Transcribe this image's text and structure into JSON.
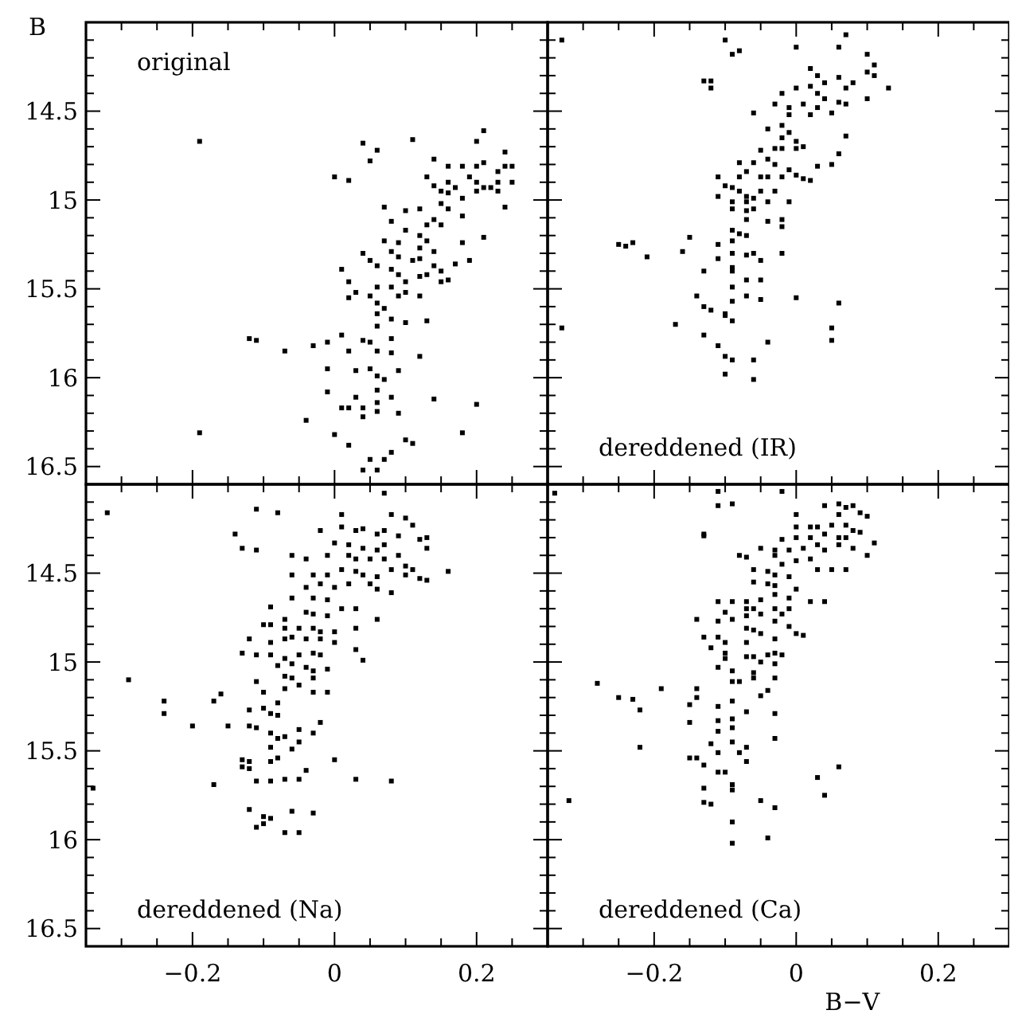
{
  "chart_data": [
    {
      "type": "scatter",
      "ylabel": "B",
      "annotations": [
        "original"
      ],
      "marker": "square",
      "tick_labels": "y",
      "xlim": [
        -0.35,
        0.3
      ],
      "ylim": [
        16.6,
        14.0
      ],
      "xticks": [
        {
          "value": -0.3,
          "label": null
        },
        {
          "value": -0.25,
          "label": null
        },
        {
          "value": -0.2,
          "label": null
        },
        {
          "value": -0.15,
          "label": null
        },
        {
          "value": -0.1,
          "label": null
        },
        {
          "value": -0.05,
          "label": null
        },
        {
          "value": 0,
          "label": null
        },
        {
          "value": 0.05,
          "label": null
        },
        {
          "value": 0.1,
          "label": null
        },
        {
          "value": 0.15,
          "label": null
        },
        {
          "value": 0.2,
          "label": null
        },
        {
          "value": 0.25,
          "label": null
        }
      ],
      "yticks": [
        {
          "value": 14.1,
          "label": null
        },
        {
          "value": 14.2,
          "label": null
        },
        {
          "value": 14.3,
          "label": null
        },
        {
          "value": 14.4,
          "label": null
        },
        14.5,
        {
          "value": 14.6,
          "label": null
        },
        {
          "value": 14.7,
          "label": null
        },
        {
          "value": 14.8,
          "label": null
        },
        {
          "value": 14.9,
          "label": null
        },
        15,
        {
          "value": 15.1,
          "label": null
        },
        {
          "value": 15.2,
          "label": null
        },
        {
          "value": 15.3,
          "label": null
        },
        {
          "value": 15.4,
          "label": null
        },
        15.5,
        {
          "value": 15.6,
          "label": null
        },
        {
          "value": 15.7,
          "label": null
        },
        {
          "value": 15.8,
          "label": null
        },
        {
          "value": 15.9,
          "label": null
        },
        16,
        {
          "value": 16.1,
          "label": null
        },
        {
          "value": 16.2,
          "label": null
        },
        {
          "value": 16.3,
          "label": null
        },
        {
          "value": 16.4,
          "label": null
        },
        16.5
      ],
      "series": [
        {
          "color": "#000000",
          "x": [
            -0.19,
            -0.19,
            0.04,
            0.06,
            0.05,
            0.0,
            0.02,
            0.11,
            0.2,
            0.21,
            0.24,
            0.25,
            0.07,
            0.1,
            0.12,
            0.14,
            0.16,
            0.18,
            0.2,
            0.21,
            0.23,
            0.24,
            0.25,
            0.23,
            0.22,
            0.2,
            0.19,
            0.17,
            0.16,
            0.15,
            0.14,
            0.13,
            0.16,
            0.18,
            0.2,
            0.21,
            0.23,
            0.24,
            0.15,
            0.14,
            0.13,
            0.12,
            0.1,
            0.08,
            0.09,
            0.12,
            0.13,
            0.15,
            0.16,
            0.14,
            0.18,
            0.18,
            0.21,
            0.07,
            0.08,
            0.09,
            0.11,
            0.12,
            0.14,
            0.15,
            0.17,
            0.19,
            0.04,
            0.05,
            0.06,
            0.08,
            0.09,
            0.1,
            0.12,
            0.13,
            0.15,
            0.16,
            0.01,
            0.02,
            0.03,
            0.05,
            0.06,
            0.08,
            0.09,
            0.1,
            0.12,
            0.02,
            0.06,
            0.07,
            0.08,
            0.1,
            0.13,
            0.06,
            0.06,
            0.01,
            0.04,
            0.05,
            0.08,
            0.02,
            0.06,
            0.08,
            0.12,
            -0.03,
            -0.01,
            -0.12,
            -0.11,
            -0.07,
            -0.01,
            0.03,
            0.05,
            0.06,
            0.07,
            0.09,
            0.03,
            0.06,
            0.06,
            0.08,
            -0.01,
            0.01,
            0.02,
            0.04,
            0.04,
            0.06,
            0.14,
            0.2,
            -0.04,
            0.0,
            0.02,
            0.05,
            0.06,
            0.07,
            0.1,
            0.11,
            0.04,
            0.18,
            0.09,
            0.08
          ],
          "values": [
            14.67,
            16.31,
            14.68,
            14.72,
            14.78,
            14.87,
            14.89,
            14.66,
            14.67,
            14.61,
            14.73,
            14.81,
            15.04,
            15.06,
            15.05,
            14.77,
            14.81,
            14.81,
            14.81,
            14.79,
            14.84,
            14.81,
            14.9,
            14.9,
            14.93,
            14.9,
            14.87,
            14.93,
            14.96,
            14.95,
            14.92,
            14.87,
            14.9,
            14.99,
            14.95,
            14.93,
            14.95,
            15.04,
            15.02,
            15.11,
            15.14,
            15.2,
            15.17,
            15.12,
            15.24,
            15.27,
            15.23,
            15.14,
            15.05,
            15.29,
            15.24,
            15.09,
            15.21,
            15.23,
            15.29,
            15.32,
            15.34,
            15.33,
            15.37,
            15.4,
            15.36,
            15.34,
            15.3,
            15.34,
            15.37,
            15.39,
            15.42,
            15.46,
            15.43,
            15.42,
            15.46,
            15.45,
            15.39,
            15.46,
            15.52,
            15.54,
            15.49,
            15.49,
            15.54,
            15.52,
            15.54,
            15.55,
            15.58,
            15.61,
            15.67,
            15.69,
            15.68,
            15.64,
            15.71,
            15.76,
            15.79,
            15.8,
            15.78,
            15.85,
            15.85,
            15.86,
            15.88,
            15.82,
            15.8,
            15.78,
            15.79,
            15.85,
            15.95,
            15.96,
            15.95,
            15.99,
            16.01,
            15.96,
            16.11,
            16.07,
            16.14,
            16.11,
            16.08,
            16.17,
            16.17,
            16.17,
            16.22,
            16.19,
            16.12,
            16.15,
            16.24,
            16.32,
            16.38,
            16.46,
            16.52,
            16.46,
            16.35,
            16.37,
            16.52,
            16.31,
            16.2,
            16.42
          ]
        }
      ]
    },
    {
      "type": "scatter",
      "annotations": [
        "dereddened (IR)"
      ],
      "marker": "square",
      "tick_labels": false,
      "xlim": [
        -0.35,
        0.3
      ],
      "ylim": [
        16.6,
        14.0
      ],
      "xticks": [
        {
          "value": -0.3,
          "label": null
        },
        {
          "value": -0.25,
          "label": null
        },
        {
          "value": -0.2,
          "label": null
        },
        {
          "value": -0.15,
          "label": null
        },
        {
          "value": -0.1,
          "label": null
        },
        {
          "value": -0.05,
          "label": null
        },
        {
          "value": 0,
          "label": null
        },
        {
          "value": 0.05,
          "label": null
        },
        {
          "value": 0.1,
          "label": null
        },
        {
          "value": 0.15,
          "label": null
        },
        {
          "value": 0.2,
          "label": null
        },
        {
          "value": 0.25,
          "label": null
        }
      ],
      "yticks": [
        {
          "value": 14.1,
          "label": null
        },
        {
          "value": 14.2,
          "label": null
        },
        {
          "value": 14.3,
          "label": null
        },
        {
          "value": 14.4,
          "label": null
        },
        {
          "value": 14.5,
          "label": null
        },
        {
          "value": 14.6,
          "label": null
        },
        {
          "value": 14.7,
          "label": null
        },
        {
          "value": 14.8,
          "label": null
        },
        {
          "value": 14.9,
          "label": null
        },
        {
          "value": 15,
          "label": null
        },
        {
          "value": 15.1,
          "label": null
        },
        {
          "value": 15.2,
          "label": null
        },
        {
          "value": 15.3,
          "label": null
        },
        {
          "value": 15.4,
          "label": null
        },
        {
          "value": 15.5,
          "label": null
        },
        {
          "value": 15.6,
          "label": null
        },
        {
          "value": 15.7,
          "label": null
        },
        {
          "value": 15.8,
          "label": null
        },
        {
          "value": 15.9,
          "label": null
        },
        {
          "value": 16,
          "label": null
        },
        {
          "value": 16.1,
          "label": null
        },
        {
          "value": 16.2,
          "label": null
        },
        {
          "value": 16.3,
          "label": null
        },
        {
          "value": 16.4,
          "label": null
        },
        {
          "value": 16.5,
          "label": null
        }
      ],
      "series": [
        {
          "color": "#000000",
          "x": [
            -0.33,
            -0.33,
            -0.1,
            -0.09,
            -0.08,
            0.0,
            0.07,
            0.06,
            -0.13,
            -0.12,
            -0.12,
            0.1,
            0.11,
            0.11,
            0.1,
            0.13,
            0.08,
            0.07,
            0.06,
            0.04,
            0.03,
            0.02,
            0.02,
            0.0,
            0.03,
            0.04,
            0.06,
            0.07,
            0.1,
            0.05,
            0.03,
            0.01,
            -0.01,
            -0.02,
            -0.01,
            0.02,
            -0.03,
            -0.06,
            -0.04,
            -0.02,
            -0.01,
            0.0,
            0.07,
            -0.02,
            -0.03,
            -0.05,
            -0.02,
            0.0,
            0.01,
            0.06,
            0.05,
            -0.08,
            -0.06,
            -0.04,
            -0.03,
            -0.01,
            0.0,
            0.01,
            0.02,
            0.03,
            -0.02,
            -0.04,
            -0.05,
            -0.07,
            -0.08,
            -0.11,
            -0.1,
            -0.09,
            -0.08,
            -0.07,
            -0.05,
            -0.03,
            -0.01,
            -0.11,
            -0.09,
            -0.07,
            -0.06,
            -0.04,
            -0.09,
            -0.07,
            -0.07,
            -0.04,
            -0.02,
            -0.02,
            -0.06,
            -0.09,
            -0.08,
            -0.07,
            -0.15,
            -0.16,
            -0.25,
            -0.24,
            -0.23,
            -0.21,
            -0.11,
            -0.09,
            -0.09,
            -0.07,
            -0.06,
            -0.05,
            -0.02,
            -0.11,
            -0.09,
            -0.09,
            -0.09,
            -0.07,
            -0.05,
            -0.13,
            -0.14,
            -0.12,
            -0.13,
            -0.1,
            -0.09,
            -0.1,
            -0.09,
            -0.07,
            -0.05,
            0.0,
            0.06,
            -0.17,
            -0.13,
            -0.11,
            -0.1,
            -0.09,
            -0.06,
            -0.1,
            -0.06,
            -0.04,
            0.05,
            0.05
          ],
          "values": [
            14.1,
            15.72,
            14.1,
            14.18,
            14.16,
            14.14,
            14.07,
            14.14,
            14.33,
            14.33,
            14.37,
            14.18,
            14.24,
            14.3,
            14.28,
            14.37,
            14.34,
            14.37,
            14.31,
            14.34,
            14.3,
            14.26,
            14.36,
            14.37,
            14.4,
            14.43,
            14.45,
            14.46,
            14.43,
            14.51,
            14.48,
            14.46,
            14.48,
            14.4,
            14.52,
            14.52,
            14.46,
            14.51,
            14.6,
            14.58,
            14.62,
            14.67,
            14.64,
            14.65,
            14.71,
            14.72,
            14.71,
            14.71,
            14.7,
            14.74,
            14.8,
            14.79,
            14.79,
            14.77,
            14.8,
            14.83,
            14.86,
            14.88,
            14.89,
            14.81,
            14.87,
            14.87,
            14.87,
            14.84,
            14.87,
            14.87,
            14.92,
            14.93,
            14.95,
            14.98,
            14.95,
            14.95,
            15.01,
            14.98,
            15.01,
            15.01,
            14.99,
            15.01,
            15.05,
            15.06,
            15.11,
            15.12,
            15.11,
            15.15,
            15.05,
            15.17,
            15.19,
            15.2,
            15.21,
            15.29,
            15.25,
            15.26,
            15.24,
            15.32,
            15.25,
            15.23,
            15.3,
            15.31,
            15.3,
            15.34,
            15.3,
            15.33,
            15.38,
            15.4,
            15.49,
            15.45,
            15.45,
            15.4,
            15.54,
            15.62,
            15.6,
            15.64,
            15.68,
            15.65,
            15.57,
            15.54,
            15.56,
            15.55,
            15.58,
            15.7,
            15.76,
            15.82,
            15.88,
            15.9,
            15.9,
            15.98,
            16.01,
            15.8,
            15.72,
            15.79
          ]
        }
      ]
    },
    {
      "type": "scatter",
      "annotations": [
        "dereddened (Na)"
      ],
      "marker": "square",
      "xlim": [
        -0.35,
        0.3
      ],
      "ylim": [
        16.6,
        14.0
      ],
      "xticks": [
        {
          "value": -0.3,
          "label": null
        },
        {
          "value": -0.25,
          "label": null
        },
        {
          "value": -0.2,
          "label": "−0.2"
        },
        {
          "value": -0.15,
          "label": null
        },
        {
          "value": -0.1,
          "label": null
        },
        {
          "value": -0.05,
          "label": null
        },
        {
          "value": 0,
          "label": "0"
        },
        {
          "value": 0.05,
          "label": null
        },
        {
          "value": 0.1,
          "label": null
        },
        {
          "value": 0.15,
          "label": null
        },
        0.2,
        {
          "value": 0.25,
          "label": null
        }
      ],
      "yticks": [
        {
          "value": 14.1,
          "label": null
        },
        {
          "value": 14.2,
          "label": null
        },
        {
          "value": 14.3,
          "label": null
        },
        {
          "value": 14.4,
          "label": null
        },
        14.5,
        {
          "value": 14.6,
          "label": null
        },
        {
          "value": 14.7,
          "label": null
        },
        {
          "value": 14.8,
          "label": null
        },
        {
          "value": 14.9,
          "label": null
        },
        15,
        {
          "value": 15.1,
          "label": null
        },
        {
          "value": 15.2,
          "label": null
        },
        {
          "value": 15.3,
          "label": null
        },
        {
          "value": 15.4,
          "label": null
        },
        15.5,
        {
          "value": 15.6,
          "label": null
        },
        {
          "value": 15.7,
          "label": null
        },
        {
          "value": 15.8,
          "label": null
        },
        {
          "value": 15.9,
          "label": null
        },
        16,
        {
          "value": 16.1,
          "label": null
        },
        {
          "value": 16.2,
          "label": null
        },
        {
          "value": 16.3,
          "label": null
        },
        {
          "value": 16.4,
          "label": null
        },
        16.5
      ],
      "series": [
        {
          "color": "#000000",
          "x": [
            -0.32,
            -0.11,
            -0.08,
            0.07,
            -0.14,
            -0.13,
            -0.11,
            -0.06,
            -0.04,
            -0.29,
            -0.24,
            -0.24,
            -0.2,
            -0.17,
            -0.16,
            -0.15,
            -0.17,
            -0.34,
            0.01,
            -0.02,
            0.01,
            0.03,
            0.04,
            0.06,
            0.07,
            0.08,
            0.1,
            0.11,
            0.09,
            0.12,
            0.13,
            0.13,
            0.0,
            0.02,
            0.04,
            0.06,
            0.07,
            -0.01,
            0.02,
            0.03,
            0.05,
            0.07,
            0.09,
            0.08,
            0.1,
            0.11,
            0.16,
            0.13,
            0.12,
            0.1,
            0.06,
            0.04,
            0.03,
            0.01,
            -0.01,
            -0.03,
            -0.06,
            -0.04,
            -0.02,
            0.0,
            0.02,
            0.05,
            0.08,
            0.06,
            -0.06,
            -0.03,
            -0.01,
            0.01,
            0.03,
            -0.09,
            -0.04,
            -0.03,
            -0.01,
            -0.07,
            0.06,
            -0.1,
            -0.09,
            -0.07,
            -0.05,
            -0.03,
            -0.02,
            0.0,
            0.03,
            -0.12,
            -0.09,
            -0.07,
            -0.06,
            -0.04,
            -0.02,
            0.0,
            0.03,
            -0.13,
            -0.11,
            -0.09,
            -0.07,
            -0.05,
            -0.03,
            -0.02,
            0.04,
            -0.08,
            -0.06,
            -0.04,
            -0.03,
            -0.01,
            -0.07,
            -0.06,
            -0.03,
            -0.07,
            -0.05,
            -0.03,
            -0.01,
            -0.11,
            -0.1,
            -0.08,
            -0.12,
            -0.1,
            -0.09,
            -0.08,
            -0.12,
            -0.11,
            -0.09,
            -0.08,
            -0.07,
            -0.05,
            -0.03,
            -0.02,
            -0.09,
            -0.06,
            -0.05,
            -0.08,
            -0.13,
            -0.12,
            -0.13,
            -0.12,
            -0.09,
            0.0,
            -0.04,
            -0.09,
            -0.07,
            -0.05,
            -0.11,
            0.03,
            0.08,
            -0.12,
            -0.1,
            -0.09,
            -0.06,
            -0.03,
            -0.11,
            -0.07,
            -0.05,
            -0.1
          ],
          "values": [
            14.16,
            14.14,
            14.16,
            14.05,
            14.28,
            14.36,
            14.37,
            14.4,
            14.42,
            15.1,
            15.22,
            15.29,
            15.36,
            15.22,
            15.18,
            15.36,
            15.69,
            15.71,
            14.17,
            14.26,
            14.24,
            14.26,
            14.25,
            14.28,
            14.26,
            14.17,
            14.19,
            14.23,
            14.29,
            14.31,
            14.3,
            14.36,
            14.33,
            14.34,
            14.36,
            14.37,
            14.34,
            14.4,
            14.4,
            14.42,
            14.42,
            14.42,
            14.4,
            14.48,
            14.46,
            14.48,
            14.49,
            14.54,
            14.53,
            14.51,
            14.52,
            14.51,
            14.49,
            14.48,
            14.51,
            14.51,
            14.51,
            14.58,
            14.56,
            14.58,
            14.56,
            14.56,
            14.61,
            14.59,
            14.64,
            14.64,
            14.65,
            14.7,
            14.7,
            14.69,
            14.72,
            14.73,
            14.74,
            14.76,
            14.76,
            14.79,
            14.79,
            14.81,
            14.81,
            14.81,
            14.83,
            14.83,
            14.81,
            14.87,
            14.89,
            14.87,
            14.86,
            14.87,
            14.87,
            14.89,
            14.93,
            14.95,
            14.96,
            14.96,
            14.98,
            14.96,
            14.95,
            14.96,
            14.99,
            15.02,
            15.01,
            15.03,
            15.05,
            15.04,
            15.08,
            15.09,
            15.09,
            15.15,
            15.13,
            15.17,
            15.17,
            15.11,
            15.17,
            15.23,
            15.27,
            15.26,
            15.29,
            15.3,
            15.36,
            15.37,
            15.4,
            15.43,
            15.42,
            15.38,
            15.4,
            15.34,
            15.48,
            15.49,
            15.45,
            15.54,
            15.55,
            15.56,
            15.59,
            15.6,
            15.56,
            15.55,
            15.61,
            15.67,
            15.66,
            15.66,
            15.67,
            15.66,
            15.67,
            15.83,
            15.87,
            15.88,
            15.84,
            15.85,
            15.93,
            15.96,
            15.96,
            15.91
          ]
        }
      ]
    },
    {
      "type": "scatter",
      "xlabel": "B−V",
      "annotations": [
        "dereddened (Ca)"
      ],
      "marker": "square",
      "tick_labels": "x",
      "xlim": [
        -0.35,
        0.3
      ],
      "ylim": [
        16.6,
        14.0
      ],
      "xticks": [
        {
          "value": -0.3,
          "label": null
        },
        {
          "value": -0.25,
          "label": null
        },
        {
          "value": -0.2,
          "label": "−0.2"
        },
        {
          "value": -0.15,
          "label": null
        },
        {
          "value": -0.1,
          "label": null
        },
        {
          "value": -0.05,
          "label": null
        },
        {
          "value": 0,
          "label": "0"
        },
        {
          "value": 0.05,
          "label": null
        },
        {
          "value": 0.1,
          "label": null
        },
        {
          "value": 0.15,
          "label": null
        },
        0.2,
        {
          "value": 0.25,
          "label": null
        }
      ],
      "yticks": [
        {
          "value": 14.1,
          "label": null
        },
        {
          "value": 14.2,
          "label": null
        },
        {
          "value": 14.3,
          "label": null
        },
        {
          "value": 14.4,
          "label": null
        },
        {
          "value": 14.5,
          "label": null
        },
        {
          "value": 14.6,
          "label": null
        },
        {
          "value": 14.7,
          "label": null
        },
        {
          "value": 14.8,
          "label": null
        },
        {
          "value": 14.9,
          "label": null
        },
        {
          "value": 15,
          "label": null
        },
        {
          "value": 15.1,
          "label": null
        },
        {
          "value": 15.2,
          "label": null
        },
        {
          "value": 15.3,
          "label": null
        },
        {
          "value": 15.4,
          "label": null
        },
        {
          "value": 15.5,
          "label": null
        },
        {
          "value": 15.6,
          "label": null
        },
        {
          "value": 15.7,
          "label": null
        },
        {
          "value": 15.8,
          "label": null
        },
        {
          "value": 15.9,
          "label": null
        },
        {
          "value": 16,
          "label": null
        },
        {
          "value": 16.1,
          "label": null
        },
        {
          "value": 16.2,
          "label": null
        },
        {
          "value": 16.3,
          "label": null
        },
        {
          "value": 16.4,
          "label": null
        },
        {
          "value": 16.5,
          "label": null
        }
      ],
      "series": [
        {
          "color": "#000000",
          "x": [
            -0.34,
            -0.32,
            -0.28,
            -0.25,
            -0.23,
            -0.22,
            -0.19,
            -0.22,
            -0.11,
            -0.11,
            -0.09,
            -0.02,
            -0.13,
            -0.13,
            0.0,
            0.04,
            0.06,
            0.07,
            0.08,
            0.06,
            0.09,
            0.1,
            0.0,
            0.02,
            0.03,
            0.05,
            0.07,
            0.08,
            0.09,
            0.11,
            -0.02,
            0.0,
            0.02,
            0.04,
            0.06,
            0.07,
            -0.03,
            -0.01,
            0.01,
            0.03,
            0.04,
            0.06,
            0.08,
            0.1,
            -0.05,
            -0.08,
            -0.07,
            -0.03,
            -0.02,
            0.0,
            0.02,
            0.03,
            0.05,
            0.07,
            -0.06,
            -0.04,
            -0.03,
            -0.01,
            -0.06,
            -0.04,
            -0.03,
            0.0,
            -0.03,
            -0.01,
            0.02,
            0.04,
            -0.11,
            -0.09,
            -0.07,
            -0.05,
            -0.03,
            -0.06,
            -0.07,
            -0.1,
            -0.09,
            -0.07,
            -0.05,
            -0.02,
            -0.01,
            -0.14,
            -0.11,
            -0.07,
            -0.06,
            -0.03,
            -0.01,
            0.0,
            0.01,
            -0.11,
            -0.1,
            -0.07,
            -0.05,
            -0.03,
            -0.13,
            -0.12,
            -0.1,
            -0.07,
            -0.06,
            -0.04,
            -0.03,
            -0.02,
            -0.1,
            -0.09,
            -0.06,
            -0.05,
            -0.03,
            -0.11,
            -0.09,
            -0.08,
            -0.06,
            -0.03,
            -0.04,
            -0.05,
            -0.14,
            -0.14,
            -0.15,
            -0.11,
            -0.09,
            -0.07,
            -0.03,
            -0.11,
            -0.09,
            -0.09,
            -0.11,
            -0.15,
            -0.12,
            -0.09,
            -0.07,
            -0.11,
            -0.08,
            -0.03,
            -0.15,
            -0.14,
            -0.13,
            -0.11,
            -0.1,
            -0.07,
            0.03,
            0.06,
            -0.09,
            -0.09,
            -0.13,
            -0.13,
            -0.12,
            -0.05,
            -0.03,
            0.04,
            -0.09,
            -0.04,
            -0.09
          ],
          "values": [
            14.05,
            15.78,
            15.12,
            15.2,
            15.21,
            15.27,
            15.15,
            15.48,
            14.04,
            14.12,
            14.11,
            14.04,
            14.29,
            14.28,
            14.17,
            14.12,
            14.11,
            14.13,
            14.12,
            14.17,
            14.16,
            14.18,
            14.24,
            14.24,
            14.24,
            14.23,
            14.23,
            14.26,
            14.27,
            14.33,
            14.31,
            14.3,
            14.3,
            14.28,
            14.3,
            14.3,
            14.37,
            14.37,
            14.36,
            14.34,
            14.37,
            14.34,
            14.36,
            14.4,
            14.36,
            14.4,
            14.41,
            14.4,
            14.45,
            14.43,
            14.42,
            14.48,
            14.48,
            14.48,
            14.48,
            14.49,
            14.51,
            14.52,
            14.55,
            14.56,
            14.57,
            14.59,
            14.62,
            14.64,
            14.66,
            14.66,
            14.66,
            14.66,
            14.66,
            14.65,
            14.7,
            14.7,
            14.7,
            14.72,
            14.76,
            14.74,
            14.73,
            14.73,
            14.7,
            14.76,
            14.77,
            14.81,
            14.82,
            14.77,
            14.8,
            14.84,
            14.85,
            14.86,
            14.89,
            14.89,
            14.84,
            14.87,
            14.86,
            14.92,
            14.95,
            14.97,
            14.97,
            14.96,
            14.95,
            14.96,
            14.98,
            15.05,
            15.06,
            15.0,
            15.01,
            15.03,
            15.11,
            15.11,
            15.09,
            15.09,
            15.16,
            15.19,
            15.15,
            15.2,
            15.24,
            15.25,
            15.22,
            15.28,
            15.29,
            15.33,
            15.32,
            15.37,
            15.39,
            15.34,
            15.46,
            15.45,
            15.48,
            15.51,
            15.51,
            15.43,
            15.54,
            15.54,
            15.58,
            15.62,
            15.62,
            15.56,
            15.65,
            15.59,
            15.69,
            15.72,
            15.71,
            15.79,
            15.8,
            15.78,
            15.82,
            15.75,
            15.9,
            15.99,
            16.02
          ]
        }
      ]
    }
  ]
}
